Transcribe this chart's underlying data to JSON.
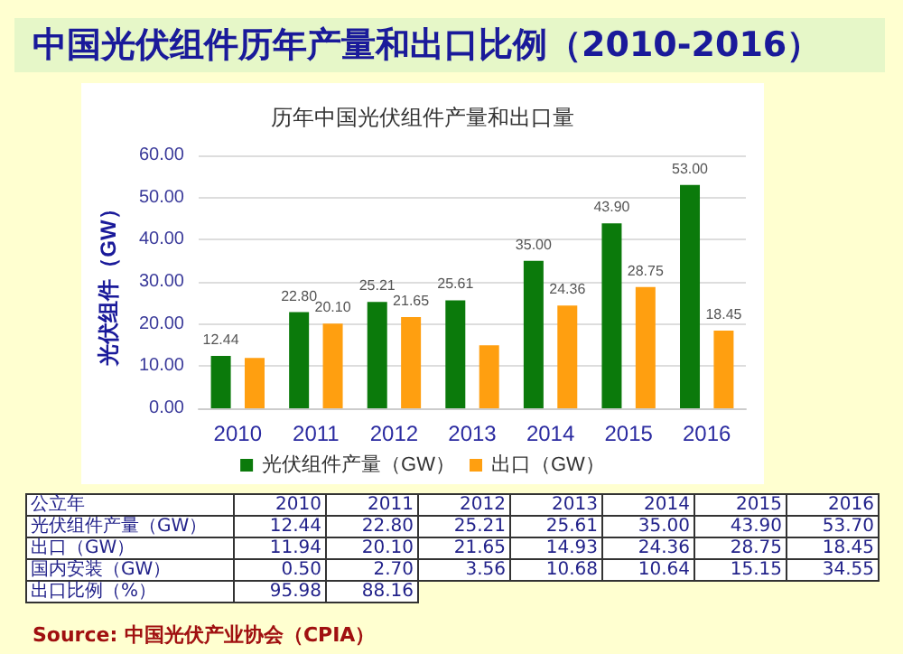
{
  "chart_data": {
    "type": "bar",
    "title": "中国光伏组件历年产量和出口比例（2010-2016）",
    "subtitle": "历年中国光伏组件产量和出口量",
    "ylabel": "光伏组件（GW）",
    "categories": [
      "2010",
      "2011",
      "2012",
      "2013",
      "2014",
      "2015",
      "2016"
    ],
    "series": [
      {
        "name": "光伏组件产量（GW）",
        "color": "#0b7a0b",
        "values": [
          12.44,
          22.8,
          25.21,
          25.61,
          35.0,
          43.9,
          53.0
        ],
        "value_labels": [
          "12.44",
          "22.80",
          "25.21",
          "25.61",
          "35.00",
          "43.90",
          "53.00"
        ]
      },
      {
        "name": "出口（GW）",
        "color": "#ff9f10",
        "values": [
          11.94,
          20.1,
          21.65,
          14.93,
          24.36,
          28.75,
          18.45
        ],
        "value_labels": [
          null,
          "20.10",
          "21.65",
          null,
          "24.36",
          "28.75",
          "18.45"
        ]
      }
    ],
    "ylim": [
      0,
      60
    ],
    "yticks": [
      {
        "value": 0,
        "label": "0.00"
      },
      {
        "value": 10,
        "label": "10.00"
      },
      {
        "value": 20,
        "label": "20.00"
      },
      {
        "value": 30,
        "label": "30.00"
      },
      {
        "value": 40,
        "label": "40.00"
      },
      {
        "value": 50,
        "label": "50.00"
      },
      {
        "value": 60,
        "label": "60.00"
      }
    ],
    "grid": "y",
    "legend": "bottom",
    "annotations": [
      "公立年 2010 2011 2012 2013 2014 2015 2016",
      "光伏组件产量（GW） 12.44 22.80 25.21 25.61 35.00 43.90 53.70",
      "出口（GW） 11.94 20.10 21.65 14.93 24.36 28.75 18.45",
      "国内安装（GW） 0.50 2.70 3.56 10.68 10.64 15.15 34.55",
      "出口比例（%） 95.98 88.16",
      "Source: 中国光伏产业协会（CPIA）"
    ]
  }
}
